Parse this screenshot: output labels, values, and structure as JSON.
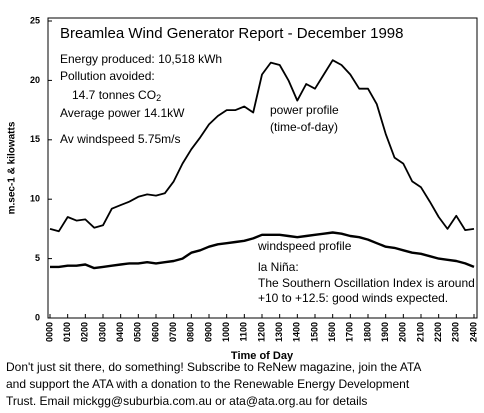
{
  "chart_data": {
    "type": "line",
    "title": "Breamlea Wind Generator Report -  December 1998",
    "y_label": "m.sec-1 & kilowatts",
    "x_label": "Time of Day",
    "annotations": [
      "Energy produced: 10,518 kWh",
      "Pollution avoided:",
      "Average power 14.1kW",
      "Av windspeed 5.75m/s",
      "(time-of-day)",
      "la Niña:",
      "The Southern Oscillation Index is around",
      "+10 to +12.5: good winds expected."
    ],
    "co2_text": "14.7 tonnes CO",
    "co2_sub": "2",
    "xlim": [
      0,
      24
    ],
    "xticks": [
      {
        "value": 0,
        "label": "0000"
      },
      {
        "value": 1,
        "label": "0100"
      },
      {
        "value": 2,
        "label": "0200"
      },
      {
        "value": 3,
        "label": "0300"
      },
      {
        "value": 4,
        "label": "0400"
      },
      {
        "value": 5,
        "label": "0500"
      },
      {
        "value": 6,
        "label": "0600"
      },
      {
        "value": 7,
        "label": "0700"
      },
      {
        "value": 8,
        "label": "0800"
      },
      {
        "value": 9,
        "label": "0900"
      },
      {
        "value": 10,
        "label": "1000"
      },
      {
        "value": 11,
        "label": "1100"
      },
      {
        "value": 12,
        "label": "1200"
      },
      {
        "value": 13,
        "label": "1300"
      },
      {
        "value": 14,
        "label": "1400"
      },
      {
        "value": 15,
        "label": "1500"
      },
      {
        "value": 16,
        "label": "1600"
      },
      {
        "value": 17,
        "label": "1700"
      },
      {
        "value": 18,
        "label": "1800"
      },
      {
        "value": 19,
        "label": "1900"
      },
      {
        "value": 20,
        "label": "2000"
      },
      {
        "value": 21,
        "label": "2100"
      },
      {
        "value": 22,
        "label": "2200"
      },
      {
        "value": 23,
        "label": "2300"
      },
      {
        "value": 24,
        "label": "2400"
      }
    ],
    "ylim": [
      0,
      25
    ],
    "yticks": [
      0,
      5,
      10,
      15,
      20,
      25
    ],
    "x": [
      0,
      0.5,
      1,
      1.5,
      2,
      2.5,
      3,
      3.5,
      4,
      4.5,
      5,
      5.5,
      6,
      6.5,
      7,
      7.5,
      8,
      8.5,
      9,
      9.5,
      10,
      10.5,
      11,
      11.5,
      12,
      12.5,
      13,
      13.5,
      14,
      14.5,
      15,
      15.5,
      16,
      16.5,
      17,
      17.5,
      18,
      18.5,
      19,
      19.5,
      20,
      20.5,
      21,
      21.5,
      22,
      22.5,
      23,
      23.5,
      24
    ],
    "series": [
      {
        "name": "power profile",
        "color": "#000000",
        "values": [
          7.5,
          7.3,
          8.5,
          8.2,
          8.3,
          7.6,
          7.8,
          9.2,
          9.5,
          9.8,
          10.2,
          10.4,
          10.3,
          10.5,
          11.5,
          13,
          14.2,
          15.2,
          16.3,
          17,
          17.5,
          17.5,
          17.8,
          17.3,
          20.5,
          21.5,
          21.3,
          20,
          18.3,
          19.7,
          19.3,
          20.5,
          21.7,
          21.3,
          20.5,
          19.3,
          19.3,
          18,
          15.5,
          13.5,
          13,
          11.5,
          11,
          9.8,
          8.5,
          7.5,
          8.6,
          7.4,
          7.5
        ]
      },
      {
        "name": "windspeed profile",
        "color": "#000000",
        "values": [
          4.3,
          4.3,
          4.4,
          4.4,
          4.5,
          4.2,
          4.3,
          4.4,
          4.5,
          4.6,
          4.6,
          4.7,
          4.6,
          4.7,
          4.8,
          5.0,
          5.5,
          5.7,
          6.0,
          6.2,
          6.3,
          6.4,
          6.5,
          6.7,
          7.0,
          7.0,
          7.0,
          6.9,
          6.8,
          6.9,
          7.0,
          7.1,
          7.2,
          7.1,
          6.9,
          6.8,
          6.6,
          6.3,
          6.0,
          5.9,
          5.7,
          5.5,
          5.4,
          5.2,
          5.0,
          4.9,
          4.8,
          4.6,
          4.3
        ]
      }
    ]
  },
  "footer": [
    "Don't just sit there, do something! Subscribe to ReNew magazine, join the ATA",
    "and support the ATA with a donation to the Renewable Energy Development",
    "Trust. Email mickgg@suburbia.com.au or ata@ata.org.au for details"
  ]
}
